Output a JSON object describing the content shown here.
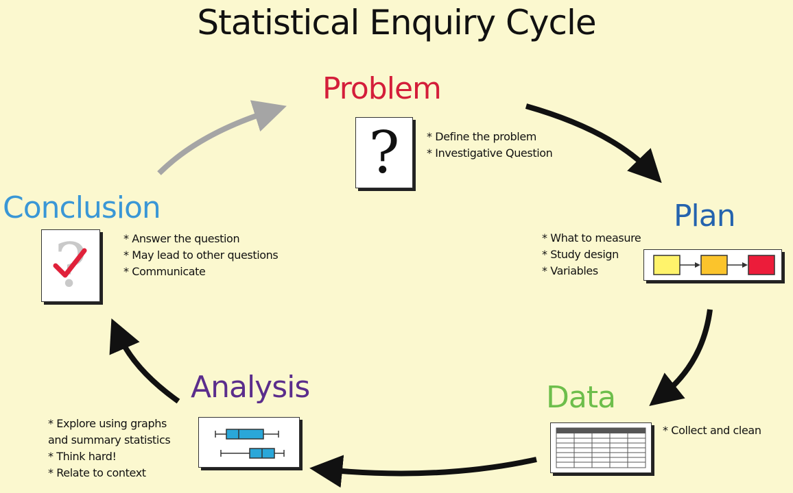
{
  "title": "Statistical Enquiry Cycle",
  "colors": {
    "problem": "#d41e3a",
    "plan": "#2463ae",
    "data": "#6dbe4b",
    "analysis": "#5b2d8c",
    "conclusion": "#3a97d6",
    "arrow_dark": "#111111",
    "arrow_grey": "#a5a5a5",
    "box_yellow": "#fff36b",
    "box_orange": "#fbc42c",
    "box_red": "#ec1c3a",
    "boxplot_blue": "#2aa7d9",
    "check_red": "#e0213a"
  },
  "stages": {
    "problem": {
      "label": "Problem",
      "icon": "question-mark-icon",
      "bullets": [
        "Define the problem",
        "Investigative Question"
      ]
    },
    "plan": {
      "label": "Plan",
      "icon": "flow-boxes-icon",
      "bullets": [
        "What to measure",
        "Study design",
        "Variables"
      ]
    },
    "data": {
      "label": "Data",
      "icon": "table-grid-icon",
      "bullets": [
        "Collect and clean"
      ]
    },
    "analysis": {
      "label": "Analysis",
      "icon": "boxplot-icon",
      "bullets": [
        "Explore using graphs",
        "and summary statistics",
        "Think hard!",
        "Relate to context"
      ]
    },
    "conclusion": {
      "label": "Conclusion",
      "icon": "question-check-icon",
      "bullets": [
        "Answer the question",
        "May lead to other questions",
        "Communicate"
      ]
    }
  }
}
